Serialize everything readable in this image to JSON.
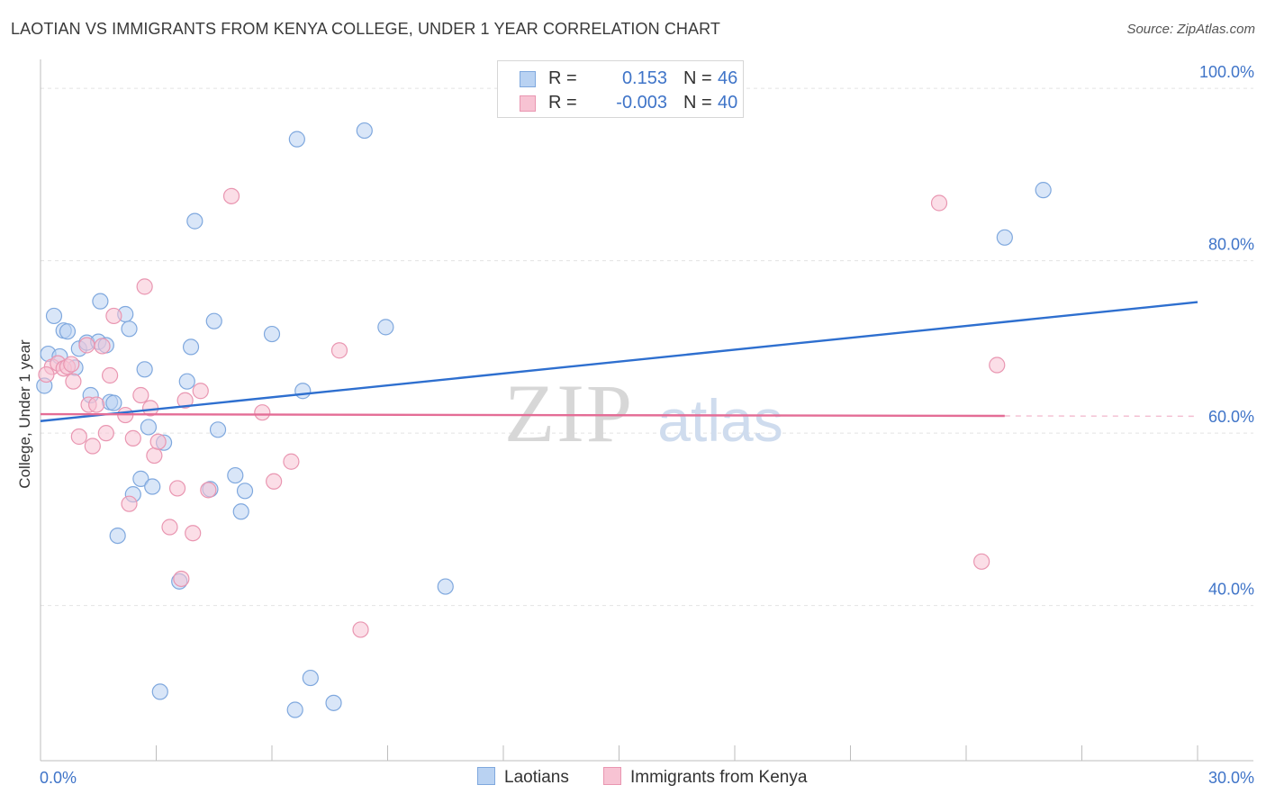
{
  "title": "LAOTIAN VS IMMIGRANTS FROM KENYA COLLEGE, UNDER 1 YEAR CORRELATION CHART",
  "source": "Source: ZipAtlas.com",
  "watermark": {
    "zip": "ZIP",
    "atlas": "atlas"
  },
  "legend": {
    "series1": {
      "r_label": "R =",
      "r_value": "0.153",
      "n_label": "N =",
      "n_value": "46"
    },
    "series2": {
      "r_label": "R =",
      "r_value": "-0.003",
      "n_label": "N =",
      "n_value": "40"
    }
  },
  "bottom_legend": {
    "series1": "Laotians",
    "series2": "Immigrants from Kenya"
  },
  "colors": {
    "blue_fill": "#b9d2f2",
    "blue_stroke": "#7fa8de",
    "blue_line": "#2e6fcf",
    "pink_fill": "#f7c3d3",
    "pink_stroke": "#e996b1",
    "pink_line": "#e46d96",
    "grid": "#e3e3e3",
    "tick_label": "#3f74c8",
    "axis_label": "#333333"
  },
  "chart_data": {
    "type": "scatter",
    "title": "LAOTIAN VS IMMIGRANTS FROM KENYA COLLEGE, UNDER 1 YEAR CORRELATION CHART",
    "xlabel": "",
    "ylabel": "College, Under 1 year",
    "xlim": [
      0,
      30
    ],
    "ylim": [
      22,
      102
    ],
    "x_tick_labels": [
      "0.0%",
      "30.0%"
    ],
    "y_ticks": [
      40,
      60,
      80,
      100
    ],
    "y_tick_labels": [
      "40.0%",
      "60.0%",
      "80.0%",
      "100.0%"
    ],
    "grid": true,
    "legend_position": "top-center",
    "series": [
      {
        "name": "Laotians",
        "r": 0.153,
        "n": 46,
        "trend": {
          "x": [
            0,
            30
          ],
          "y": [
            61.4,
            75.2
          ]
        },
        "points": [
          {
            "x": 0.2,
            "y": 69.2
          },
          {
            "x": 0.35,
            "y": 73.6
          },
          {
            "x": 0.5,
            "y": 68.9
          },
          {
            "x": 0.6,
            "y": 71.9
          },
          {
            "x": 0.7,
            "y": 71.8
          },
          {
            "x": 0.9,
            "y": 67.6
          },
          {
            "x": 1.0,
            "y": 69.8
          },
          {
            "x": 1.2,
            "y": 70.5
          },
          {
            "x": 1.3,
            "y": 64.4
          },
          {
            "x": 1.5,
            "y": 70.6
          },
          {
            "x": 1.55,
            "y": 75.3
          },
          {
            "x": 1.7,
            "y": 70.2
          },
          {
            "x": 1.8,
            "y": 63.6
          },
          {
            "x": 1.9,
            "y": 63.5
          },
          {
            "x": 2.0,
            "y": 48.1
          },
          {
            "x": 2.2,
            "y": 73.8
          },
          {
            "x": 2.3,
            "y": 72.1
          },
          {
            "x": 2.4,
            "y": 52.9
          },
          {
            "x": 2.6,
            "y": 54.7
          },
          {
            "x": 2.7,
            "y": 67.4
          },
          {
            "x": 2.8,
            "y": 60.7
          },
          {
            "x": 2.9,
            "y": 53.8
          },
          {
            "x": 3.1,
            "y": 30.0
          },
          {
            "x": 3.2,
            "y": 58.9
          },
          {
            "x": 3.6,
            "y": 42.8
          },
          {
            "x": 3.8,
            "y": 66.0
          },
          {
            "x": 3.9,
            "y": 70.0
          },
          {
            "x": 4.0,
            "y": 84.6
          },
          {
            "x": 4.4,
            "y": 53.5
          },
          {
            "x": 4.5,
            "y": 73.0
          },
          {
            "x": 4.6,
            "y": 60.4
          },
          {
            "x": 5.05,
            "y": 55.1
          },
          {
            "x": 5.2,
            "y": 50.9
          },
          {
            "x": 5.3,
            "y": 53.3
          },
          {
            "x": 6.0,
            "y": 71.5
          },
          {
            "x": 6.6,
            "y": 27.9
          },
          {
            "x": 6.65,
            "y": 94.1
          },
          {
            "x": 6.8,
            "y": 64.9
          },
          {
            "x": 7.0,
            "y": 31.6
          },
          {
            "x": 7.6,
            "y": 28.7
          },
          {
            "x": 8.4,
            "y": 95.1
          },
          {
            "x": 8.95,
            "y": 72.3
          },
          {
            "x": 10.5,
            "y": 42.2
          },
          {
            "x": 25.0,
            "y": 82.7
          },
          {
            "x": 26.0,
            "y": 88.2
          },
          {
            "x": 0.1,
            "y": 65.5
          }
        ]
      },
      {
        "name": "Immigrants from Kenya",
        "r": -0.003,
        "n": 40,
        "trend": {
          "x": [
            0,
            25
          ],
          "y": [
            62.2,
            62.0
          ]
        },
        "points": [
          {
            "x": 0.3,
            "y": 67.7
          },
          {
            "x": 0.45,
            "y": 68.1
          },
          {
            "x": 0.6,
            "y": 67.5
          },
          {
            "x": 0.7,
            "y": 67.7
          },
          {
            "x": 0.8,
            "y": 68.0
          },
          {
            "x": 0.85,
            "y": 66.0
          },
          {
            "x": 1.0,
            "y": 59.6
          },
          {
            "x": 1.2,
            "y": 70.2
          },
          {
            "x": 1.25,
            "y": 63.3
          },
          {
            "x": 1.35,
            "y": 58.5
          },
          {
            "x": 1.45,
            "y": 63.3
          },
          {
            "x": 1.6,
            "y": 70.1
          },
          {
            "x": 1.7,
            "y": 60.0
          },
          {
            "x": 1.8,
            "y": 66.7
          },
          {
            "x": 1.9,
            "y": 73.6
          },
          {
            "x": 2.2,
            "y": 62.1
          },
          {
            "x": 2.3,
            "y": 51.8
          },
          {
            "x": 2.4,
            "y": 59.4
          },
          {
            "x": 2.6,
            "y": 64.4
          },
          {
            "x": 2.7,
            "y": 77.0
          },
          {
            "x": 2.85,
            "y": 62.9
          },
          {
            "x": 2.95,
            "y": 57.4
          },
          {
            "x": 3.05,
            "y": 59.0
          },
          {
            "x": 3.35,
            "y": 49.1
          },
          {
            "x": 3.55,
            "y": 53.6
          },
          {
            "x": 3.65,
            "y": 43.1
          },
          {
            "x": 3.75,
            "y": 63.8
          },
          {
            "x": 3.95,
            "y": 48.4
          },
          {
            "x": 4.15,
            "y": 64.9
          },
          {
            "x": 4.35,
            "y": 53.4
          },
          {
            "x": 4.95,
            "y": 87.5
          },
          {
            "x": 5.75,
            "y": 62.4
          },
          {
            "x": 6.05,
            "y": 54.4
          },
          {
            "x": 6.5,
            "y": 56.7
          },
          {
            "x": 7.75,
            "y": 69.6
          },
          {
            "x": 8.3,
            "y": 37.2
          },
          {
            "x": 23.3,
            "y": 86.7
          },
          {
            "x": 24.4,
            "y": 45.1
          },
          {
            "x": 24.8,
            "y": 67.9
          },
          {
            "x": 0.15,
            "y": 66.8
          }
        ]
      }
    ]
  }
}
